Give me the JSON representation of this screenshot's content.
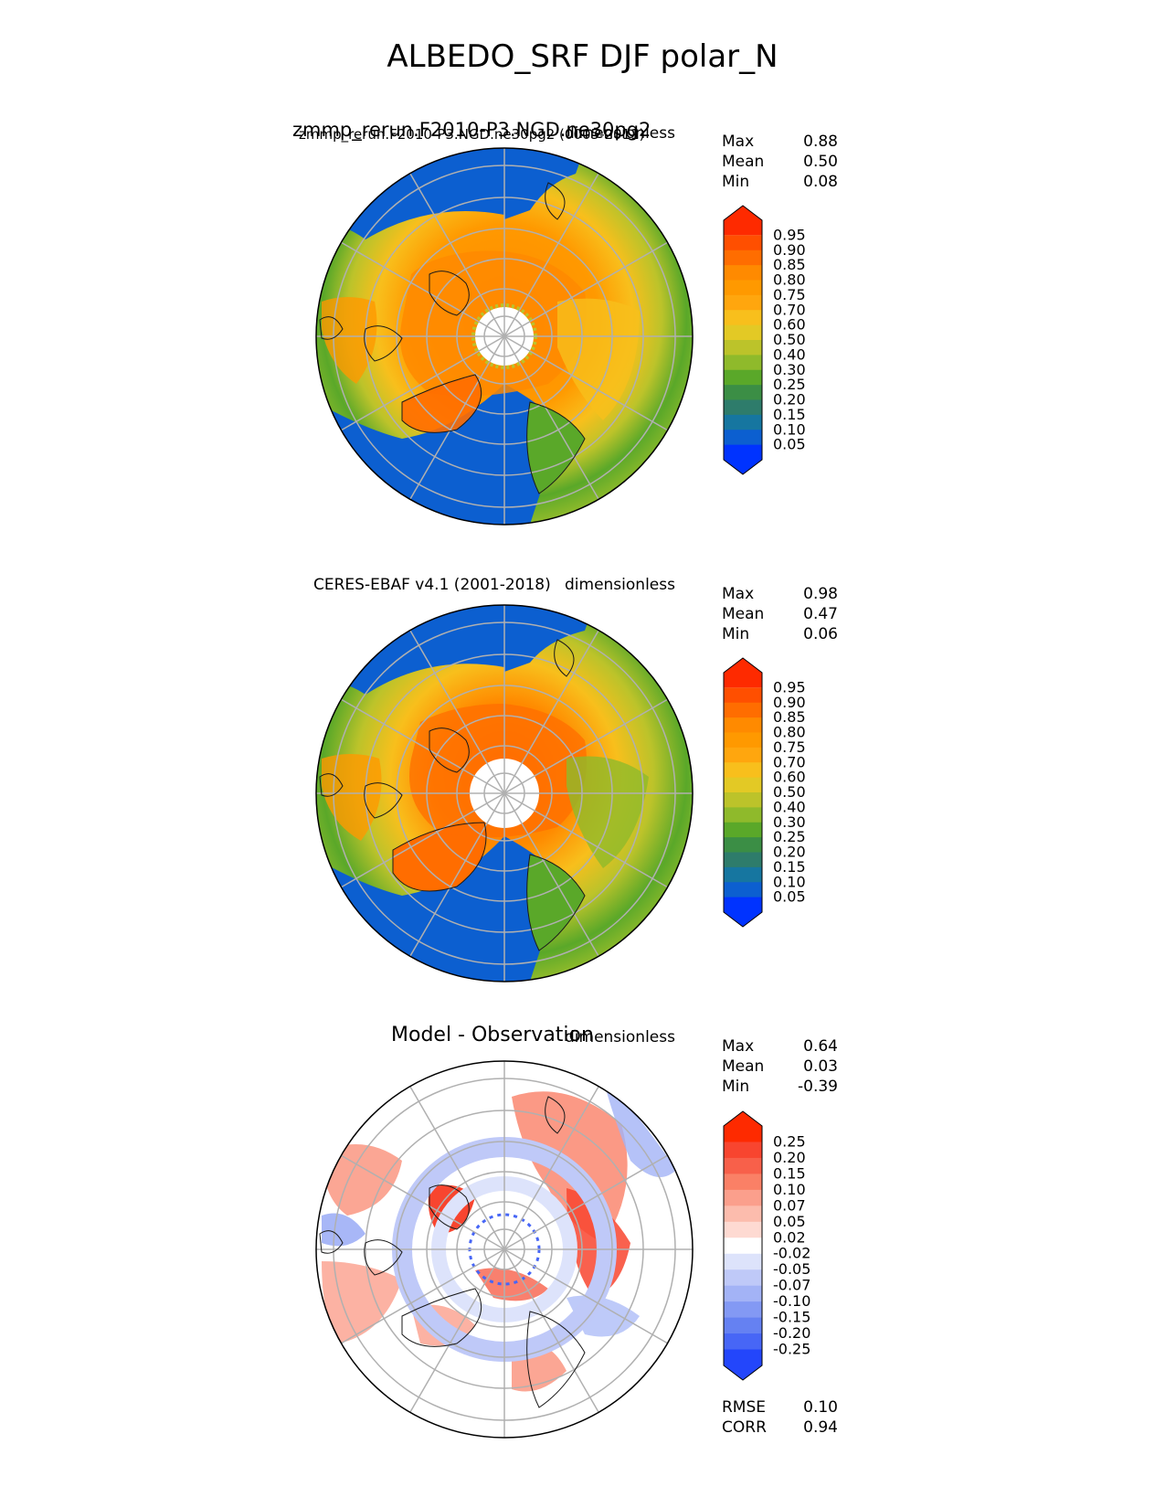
{
  "title": "ALBEDO_SRF DJF polar_N",
  "panels": [
    {
      "left_title": "zmmp_rerun.F2010-P3.NGD.ne30pg2",
      "left_subtitle": "zmmp_rerun.F2010-P3.NGD.ne30pg2 (0005-2011)",
      "right_title": "dimensionless",
      "stats": [
        {
          "label": "Max",
          "value": "0.88"
        },
        {
          "label": "Mean",
          "value": "0.50"
        },
        {
          "label": "Min",
          "value": "0.08"
        }
      ],
      "colorbar": {
        "ticks": [
          "0.95",
          "0.90",
          "0.85",
          "0.80",
          "0.75",
          "0.70",
          "0.60",
          "0.50",
          "0.40",
          "0.30",
          "0.25",
          "0.20",
          "0.15",
          "0.10",
          "0.05"
        ],
        "colors": [
          "#fe2a00",
          "#ff4f00",
          "#ff6d00",
          "#ff8a00",
          "#ff9900",
          "#ffa60e",
          "#f8bf1c",
          "#e3c925",
          "#bcc32a",
          "#8fba2b",
          "#5aa829",
          "#3b8e45",
          "#2e7c6b",
          "#1676a0",
          "#0c5fd0",
          "#0033ff"
        ]
      }
    },
    {
      "left_title": "CERES-EBAF v4.1 (2001-2018)",
      "right_title": "dimensionless",
      "stats": [
        {
          "label": "Max",
          "value": "0.98"
        },
        {
          "label": "Mean",
          "value": "0.47"
        },
        {
          "label": "Min",
          "value": "0.06"
        }
      ],
      "colorbar": {
        "ticks": [
          "0.95",
          "0.90",
          "0.85",
          "0.80",
          "0.75",
          "0.70",
          "0.60",
          "0.50",
          "0.40",
          "0.30",
          "0.25",
          "0.20",
          "0.15",
          "0.10",
          "0.05"
        ],
        "colors": [
          "#fe2a00",
          "#ff4f00",
          "#ff6d00",
          "#ff8a00",
          "#ff9900",
          "#ffa60e",
          "#f8bf1c",
          "#e3c925",
          "#bcc32a",
          "#8fba2b",
          "#5aa829",
          "#3b8e45",
          "#2e7c6b",
          "#1676a0",
          "#0c5fd0",
          "#0033ff"
        ]
      }
    },
    {
      "left_title": "Model - Observation",
      "right_title": "dimensionless",
      "stats": [
        {
          "label": "Max",
          "value": "0.64"
        },
        {
          "label": "Mean",
          "value": "0.03"
        },
        {
          "label": "Min",
          "value": "-0.39"
        }
      ],
      "extra_stats": [
        {
          "label": "RMSE",
          "value": "0.10"
        },
        {
          "label": "CORR",
          "value": "0.94"
        }
      ],
      "colorbar": {
        "ticks": [
          "0.25",
          "0.20",
          "0.15",
          "0.10",
          "0.07",
          "0.05",
          "0.02",
          "-0.02",
          "-0.05",
          "-0.07",
          "-0.10",
          "-0.15",
          "-0.20",
          "-0.25"
        ],
        "colors": [
          "#fe2a00",
          "#f8452f",
          "#f8604a",
          "#fa8066",
          "#fb9f8c",
          "#fcbcad",
          "#fedad2",
          "#ffffff",
          "#dde3fb",
          "#bfc9f8",
          "#a3b3f6",
          "#8399f4",
          "#6581f2",
          "#4766f6",
          "#2346fb"
        ]
      }
    }
  ],
  "chart_data": {
    "type": "heatmap",
    "projection": "north polar stereographic",
    "variable": "ALBEDO_SRF",
    "season": "DJF",
    "region": "polar_N",
    "grid": true,
    "panels": [
      {
        "name": "zmmp_rerun.F2010-P3.NGD.ne30pg2 (0005-2011)",
        "units": "dimensionless",
        "max": 0.88,
        "mean": 0.5,
        "min": 0.08,
        "levels": [
          0.05,
          0.1,
          0.15,
          0.2,
          0.25,
          0.3,
          0.4,
          0.5,
          0.6,
          0.7,
          0.75,
          0.8,
          0.85,
          0.9,
          0.95
        ]
      },
      {
        "name": "CERES-EBAF v4.1 (2001-2018)",
        "units": "dimensionless",
        "max": 0.98,
        "mean": 0.47,
        "min": 0.06,
        "levels": [
          0.05,
          0.1,
          0.15,
          0.2,
          0.25,
          0.3,
          0.4,
          0.5,
          0.6,
          0.7,
          0.75,
          0.8,
          0.85,
          0.9,
          0.95
        ]
      },
      {
        "name": "Model - Observation",
        "units": "dimensionless",
        "max": 0.64,
        "mean": 0.03,
        "min": -0.39,
        "rmse": 0.1,
        "corr": 0.94,
        "levels": [
          -0.25,
          -0.2,
          -0.15,
          -0.1,
          -0.07,
          -0.05,
          -0.02,
          0.02,
          0.05,
          0.07,
          0.1,
          0.15,
          0.2,
          0.25
        ]
      }
    ]
  }
}
